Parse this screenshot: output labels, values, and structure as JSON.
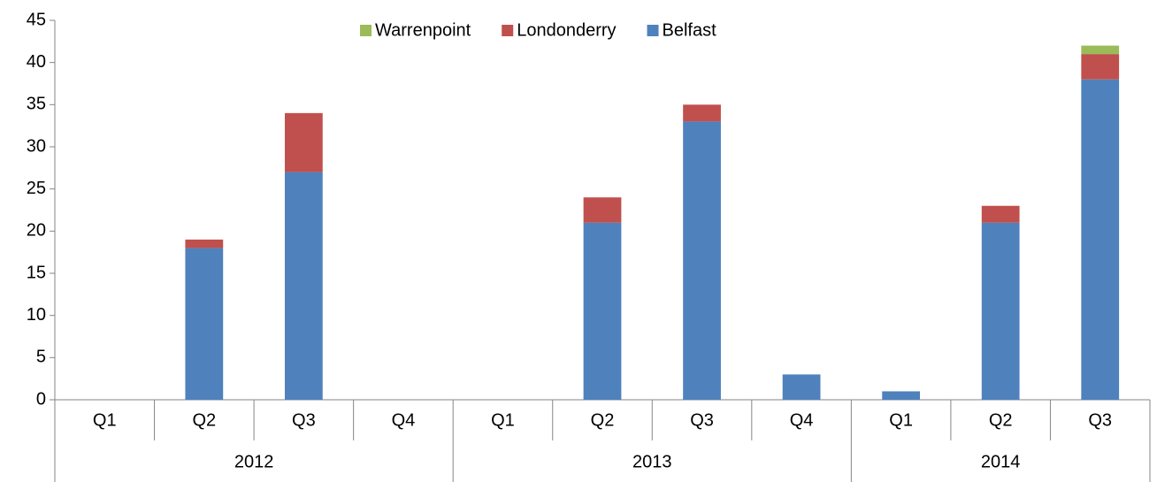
{
  "chart_data": {
    "type": "stacked_bar",
    "groups": [
      {
        "name": "2012",
        "categories": [
          "Q1",
          "Q2",
          "Q3",
          "Q4"
        ]
      },
      {
        "name": "2013",
        "categories": [
          "Q1",
          "Q2",
          "Q3",
          "Q4"
        ]
      },
      {
        "name": "2014",
        "categories": [
          "Q1",
          "Q2",
          "Q3"
        ]
      }
    ],
    "series": [
      {
        "name": "Belfast",
        "color": "#4f81bd",
        "values": [
          0,
          18,
          27,
          0,
          0,
          21,
          33,
          3,
          1,
          21,
          38
        ]
      },
      {
        "name": "Londonderry",
        "color": "#c0504d",
        "values": [
          0,
          1,
          7,
          0,
          0,
          3,
          2,
          0,
          0,
          2,
          3
        ]
      },
      {
        "name": "Warrenpoint",
        "color": "#9bbb59",
        "values": [
          0,
          0,
          0,
          0,
          0,
          0,
          0,
          0,
          0,
          0,
          1
        ]
      }
    ],
    "ylim": [
      0,
      45
    ],
    "yticks": [
      0,
      5,
      10,
      15,
      20,
      25,
      30,
      35,
      40,
      45
    ],
    "legend": "top"
  }
}
